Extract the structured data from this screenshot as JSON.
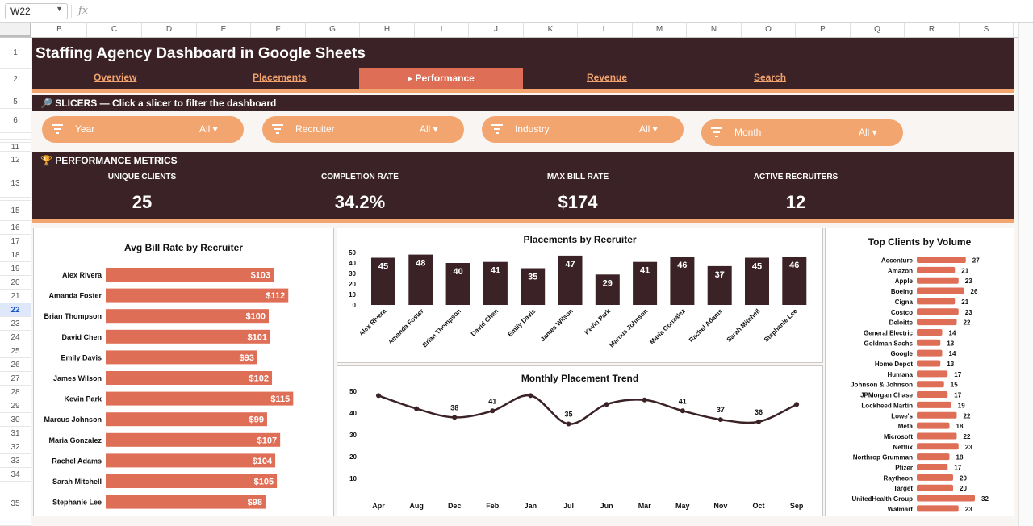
{
  "formula_bar": {
    "cell_ref": "W22",
    "fx": "fx"
  },
  "columns": [
    "B",
    "C",
    "D",
    "E",
    "F",
    "G",
    "H",
    "I",
    "J",
    "K",
    "L",
    "M",
    "N",
    "O",
    "P",
    "Q",
    "R",
    "S"
  ],
  "rows": [
    "1",
    "2",
    "5",
    "6",
    "7",
    "8",
    "9",
    "11",
    "12",
    "13",
    "14",
    "15",
    "16",
    "17",
    "18",
    "19",
    "20",
    "21",
    "22",
    "23",
    "24",
    "25",
    "26",
    "27",
    "28",
    "29",
    "30",
    "31",
    "32",
    "33",
    "34",
    "35"
  ],
  "active_row": "22",
  "banner": {
    "title": "Staffing Agency Dashboard in Google Sheets",
    "nav": {
      "overview": "Overview",
      "placements": "Placements",
      "performance": "▸ Performance",
      "revenue": "Revenue",
      "search": "Search"
    }
  },
  "slicers": {
    "header": "🔎 SLICERS — Click a slicer to filter the dashboard",
    "items": [
      {
        "label": "Year",
        "value": "All ▾"
      },
      {
        "label": "Recruiter",
        "value": "All ▾"
      },
      {
        "label": "Industry",
        "value": "All ▾"
      },
      {
        "label": "Month",
        "value": "All ▾"
      }
    ]
  },
  "metrics": {
    "header": "🏆 PERFORMANCE METRICS",
    "items": [
      {
        "label": "UNIQUE CLIENTS",
        "value": "25"
      },
      {
        "label": "COMPLETION RATE",
        "value": "34.2%"
      },
      {
        "label": "MAX BILL RATE",
        "value": "$174"
      },
      {
        "label": "ACTIVE RECRUITERS",
        "value": "12"
      }
    ]
  },
  "colors": {
    "dark": "#3b2226",
    "accent": "#df6e57",
    "light_accent": "#f2a56f"
  },
  "chart_data": [
    {
      "id": "avg-bill-rate",
      "type": "bar",
      "orientation": "horizontal",
      "title": "Avg Bill Rate by Recruiter",
      "categories": [
        "Alex Rivera",
        "Amanda Foster",
        "Brian Thompson",
        "David Chen",
        "Emily Davis",
        "James Wilson",
        "Kevin Park",
        "Marcus Johnson",
        "Maria Gonzalez",
        "Rachel Adams",
        "Sarah Mitchell",
        "Stephanie Lee"
      ],
      "values": [
        103,
        112,
        100,
        101,
        93,
        102,
        115,
        99,
        107,
        104,
        105,
        98
      ],
      "labels": [
        "$103",
        "$112",
        "$100",
        "$101",
        "$93",
        "$102",
        "$115",
        "$99",
        "$107",
        "$104",
        "$105",
        "$98"
      ],
      "color": "#df6e57"
    },
    {
      "id": "placements-by-recruiter",
      "type": "bar",
      "title": "Placements by Recruiter",
      "categories": [
        "Alex Rivera",
        "Amanda Foster",
        "Brian Thompson",
        "David Chen",
        "Emily Davis",
        "James Wilson",
        "Kevin Park",
        "Marcus Johnson",
        "Maria Gonzalez",
        "Rachel Adams",
        "Sarah Mitchell",
        "Stephanie Lee"
      ],
      "values": [
        45,
        48,
        40,
        41,
        35,
        47,
        29,
        41,
        46,
        37,
        45,
        46
      ],
      "y_ticks": [
        "0",
        "10",
        "20",
        "30",
        "40",
        "50"
      ],
      "ylim": [
        0,
        50
      ],
      "color": "#3b2226"
    },
    {
      "id": "monthly-placement-trend",
      "type": "line",
      "title": "Monthly Placement Trend",
      "categories": [
        "Apr",
        "Aug",
        "Dec",
        "Feb",
        "Jan",
        "Jul",
        "Jun",
        "Mar",
        "May",
        "Nov",
        "Oct",
        "Sep"
      ],
      "values": [
        48,
        42,
        38,
        41,
        48,
        35,
        44,
        46,
        41,
        37,
        36,
        44
      ],
      "point_labels": [
        null,
        null,
        "38",
        "41",
        null,
        "35",
        null,
        null,
        "41",
        "37",
        "36",
        null
      ],
      "y_ticks": [
        "0",
        "10",
        "20",
        "30",
        "40",
        "50"
      ],
      "ylim": [
        0,
        50
      ],
      "color": "#3b2226"
    },
    {
      "id": "top-clients-by-volume",
      "type": "bar",
      "orientation": "horizontal",
      "title": "Top Clients by Volume",
      "categories": [
        "Accenture",
        "Amazon",
        "Apple",
        "Boeing",
        "Cigna",
        "Costco",
        "Deloitte",
        "General Electric",
        "Goldman Sachs",
        "Google",
        "Home Depot",
        "Humana",
        "Johnson & Johnson",
        "JPMorgan Chase",
        "Lockheed Martin",
        "Lowe's",
        "Meta",
        "Microsoft",
        "Netflix",
        "Northrop Grumman",
        "Pfizer",
        "Raytheon",
        "Target",
        "UnitedHealth Group",
        "Walmart"
      ],
      "values": [
        27,
        21,
        23,
        26,
        21,
        23,
        22,
        14,
        13,
        14,
        13,
        17,
        15,
        17,
        19,
        22,
        18,
        22,
        23,
        18,
        17,
        20,
        20,
        32,
        23
      ],
      "color": "#df6e57"
    }
  ]
}
